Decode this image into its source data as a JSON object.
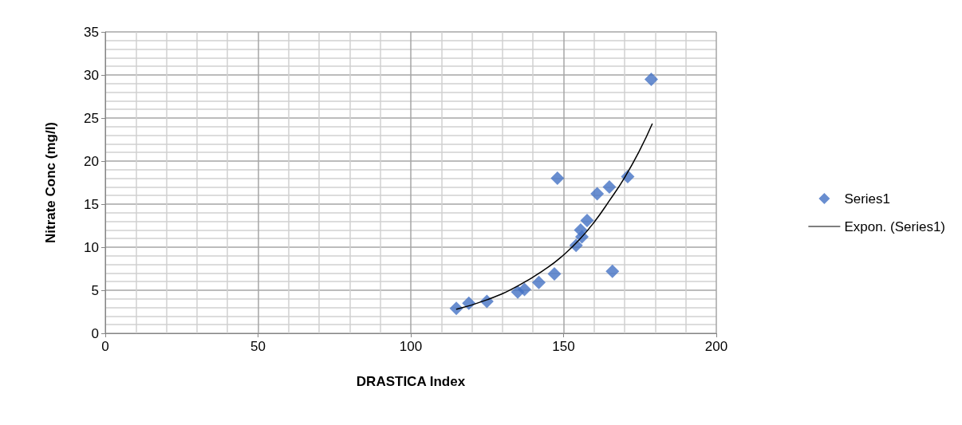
{
  "chart_data": {
    "type": "scatter",
    "xlabel": "DRASTICA Index",
    "ylabel": "Nitrate Conc (mg/l)",
    "xlim": [
      0,
      200
    ],
    "xticks": [
      0,
      50,
      100,
      150,
      200
    ],
    "ylim": [
      0,
      35
    ],
    "yticks": [
      0,
      5,
      10,
      15,
      20,
      25,
      30,
      35
    ],
    "grid": true,
    "legend": "right",
    "marker": "diamond",
    "series": [
      {
        "name": "Series1",
        "color": "#4472c4",
        "x": [
          114.9,
          119.0,
          124.9,
          135.0,
          137.2,
          141.9,
          147.0,
          148.0,
          154.1,
          156.0,
          155.6,
          157.7,
          161.0,
          165.0,
          166.0,
          171.0,
          178.7
        ],
        "values": [
          2.9,
          3.5,
          3.7,
          4.8,
          5.1,
          5.9,
          6.9,
          18.0,
          10.2,
          11.2,
          12.0,
          13.1,
          16.2,
          17.0,
          7.2,
          18.2,
          29.5
        ]
      },
      {
        "name": "Expon. (Series1)",
        "type": "line",
        "color": "#000000",
        "line_style": "solid",
        "marker": "none",
        "x": [
          115,
          125,
          135,
          145,
          150,
          155,
          160,
          165,
          170,
          175,
          179
        ],
        "values": [
          2.8,
          3.9,
          5.5,
          7.7,
          9.1,
          10.8,
          12.9,
          15.4,
          18.1,
          21.3,
          24.3
        ]
      }
    ]
  }
}
